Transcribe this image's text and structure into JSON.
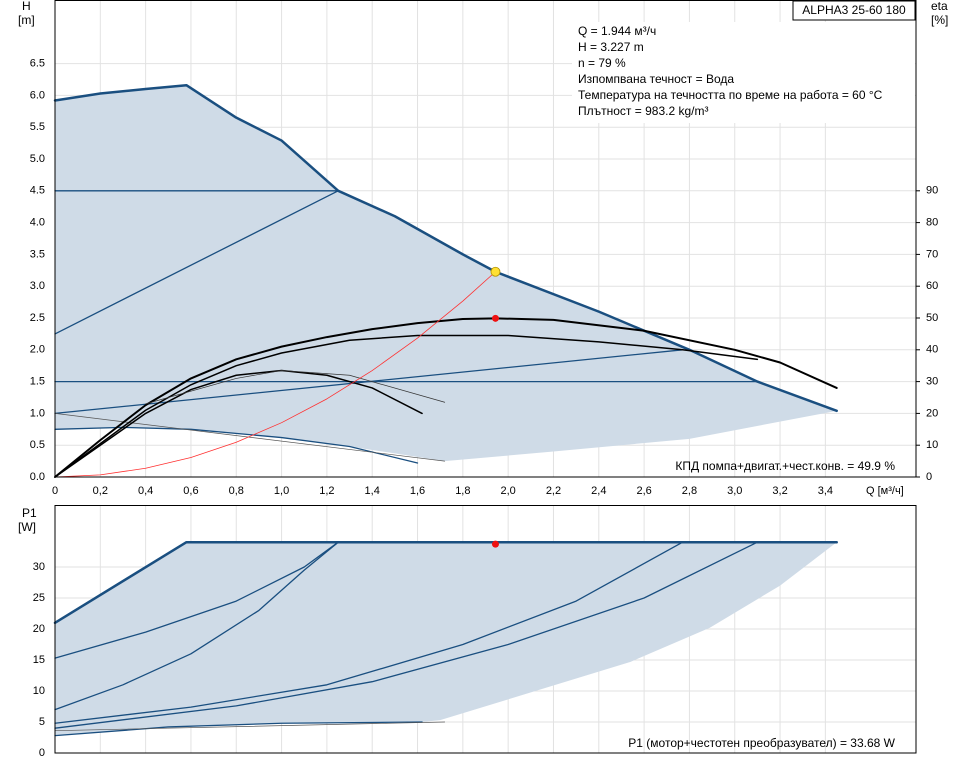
{
  "chart_data": [
    {
      "type": "line",
      "title": "ALPHA3 25-60 180",
      "info": [
        "Q = 1.944 м³/ч",
        "H = 3.227 m",
        "n = 79 %",
        "Изпомпвана течност = Вода",
        "Температура на течността по време на работа = 60 °C",
        "Плътност = 983.2 kg/m³"
      ],
      "annotation": "КПД помпа+двигат.+чест.конв. = 49.9 %",
      "ylabel": "H",
      "yunit": "[m]",
      "y2label": "eta",
      "y2unit": "[%]",
      "xlabel": "Q [м³/ч]",
      "xlim": [
        0,
        3.8
      ],
      "ylim": [
        0,
        7.5
      ],
      "y2lim": [
        0,
        150
      ],
      "grid": true,
      "xticks": [
        0,
        {
          "value": 0.2,
          "label": "0,2"
        },
        {
          "value": 0.4,
          "label": "0,4"
        },
        {
          "value": 0.6,
          "label": "0,6"
        },
        {
          "value": 0.8,
          "label": "0,8"
        },
        {
          "value": 1.0,
          "label": "1,0"
        },
        {
          "value": 1.2,
          "label": "1,2"
        },
        {
          "value": 1.4,
          "label": "1,4"
        },
        {
          "value": 1.6,
          "label": "1,6"
        },
        {
          "value": 1.8,
          "label": "1,8"
        },
        {
          "value": 2.0,
          "label": "2,0"
        },
        {
          "value": 2.2,
          "label": "2,2"
        },
        {
          "value": 2.4,
          "label": "2,4"
        },
        {
          "value": 2.6,
          "label": "2,6"
        },
        {
          "value": 2.8,
          "label": "2,8"
        },
        {
          "value": 3.0,
          "label": "3,0"
        },
        {
          "value": 3.2,
          "label": "3,2"
        },
        {
          "value": 3.4,
          "label": "3,4"
        }
      ],
      "yticks": [
        {
          "value": 0,
          "label": "0.0"
        },
        0.5,
        {
          "value": 1,
          "label": "1.0"
        },
        1.5,
        {
          "value": 2,
          "label": "2.0"
        },
        2.5,
        {
          "value": 3,
          "label": "3.0"
        },
        3.5,
        {
          "value": 4,
          "label": "4.0"
        },
        4.5,
        {
          "value": 5,
          "label": "5.0"
        },
        5.5,
        {
          "value": 6,
          "label": "6.0"
        },
        6.5
      ],
      "y2ticks": [
        0,
        10,
        20,
        30,
        40,
        50,
        60,
        70,
        80,
        90
      ],
      "area": {
        "color": "#cfdbe7",
        "x": [
          0,
          0.2,
          0.4,
          0.58,
          0.8,
          1.0,
          1.25,
          1.5,
          1.8,
          1.944,
          2.4,
          2.8,
          3.1,
          3.45,
          2.8,
          2.2,
          1.72,
          1.3,
          1.0,
          0.6,
          0.3,
          0
        ],
        "values": [
          5.92,
          6.03,
          6.1,
          6.16,
          5.65,
          5.29,
          4.5,
          4.1,
          3.5,
          3.227,
          2.6,
          2.0,
          1.5,
          1.04,
          0.6,
          0.4,
          0.25,
          0.48,
          0.62,
          0.75,
          0.78,
          0.75
        ]
      },
      "series": [
        {
          "color": "#1a4f80",
          "width": 2.5,
          "x": [
            0,
            0.2,
            0.4,
            0.58,
            0.8,
            1.0,
            1.25,
            1.5,
            1.8,
            1.944,
            2.4,
            2.8,
            3.1,
            3.45
          ],
          "values": [
            5.92,
            6.03,
            6.1,
            6.16,
            5.65,
            5.29,
            4.5,
            4.1,
            3.5,
            3.227,
            2.6,
            2.0,
            1.5,
            1.04
          ]
        },
        {
          "color": "#1a4f80",
          "width": 1.3,
          "x": [
            0,
            1.25
          ],
          "values": [
            4.5,
            4.5
          ]
        },
        {
          "color": "#1a4f80",
          "width": 1.3,
          "x": [
            0,
            1.25
          ],
          "values": [
            2.25,
            4.5
          ]
        },
        {
          "color": "#1a4f80",
          "width": 1.3,
          "x": [
            0,
            3.1
          ],
          "values": [
            1.5,
            1.5
          ]
        },
        {
          "color": "#1a4f80",
          "width": 1.3,
          "x": [
            0,
            2.77
          ],
          "values": [
            1.0,
            2.0
          ]
        },
        {
          "color": "#1a4f80",
          "width": 1.3,
          "x": [
            0,
            0.3,
            0.6,
            1.0,
            1.3,
            1.6
          ],
          "values": [
            0.75,
            0.78,
            0.75,
            0.62,
            0.48,
            0.22
          ]
        },
        {
          "color": "#555555",
          "width": 0.7,
          "x": [
            0,
            1.72
          ],
          "values": [
            1.0,
            0.25
          ]
        },
        {
          "color": "#000000",
          "width": 2,
          "axis": "y2",
          "x": [
            0,
            0.2,
            0.4,
            0.6,
            0.8,
            1.0,
            1.2,
            1.4,
            1.6,
            1.8,
            1.944,
            2.2,
            2.6,
            3.0,
            3.2,
            3.45
          ],
          "values": [
            0,
            11.6,
            22.6,
            31,
            37,
            41,
            44,
            46.5,
            48.4,
            49.7,
            49.9,
            49.4,
            46,
            40,
            36,
            28
          ]
        },
        {
          "color": "#000000",
          "width": 1.5,
          "axis": "y2",
          "x": [
            0,
            0.2,
            0.4,
            0.6,
            0.8,
            1.0,
            1.3,
            1.6,
            2.0,
            2.4,
            2.77,
            3.1
          ],
          "values": [
            0,
            10.5,
            21,
            29,
            35,
            39,
            43,
            44.5,
            44.5,
            42.5,
            40,
            37
          ]
        },
        {
          "color": "#000000",
          "width": 1.5,
          "axis": "y2",
          "x": [
            0,
            0.2,
            0.4,
            0.6,
            0.8,
            1.0,
            1.2,
            1.4,
            1.62
          ],
          "values": [
            0,
            10,
            20,
            27.5,
            32,
            33.5,
            32,
            28,
            20
          ]
        },
        {
          "color": "#333333",
          "width": 0.7,
          "axis": "y2",
          "x": [
            0.4,
            0.8,
            1.0,
            1.3,
            1.72
          ],
          "values": [
            23,
            31,
            33.5,
            32,
            23.5
          ]
        },
        {
          "color": "#ff3030",
          "width": 0.8,
          "x": [
            0,
            0.2,
            0.4,
            0.6,
            0.8,
            1.0,
            1.2,
            1.4,
            1.6,
            1.8,
            1.944
          ],
          "values": [
            0,
            0.034,
            0.137,
            0.307,
            0.546,
            0.854,
            1.229,
            1.673,
            2.185,
            2.766,
            3.227
          ]
        }
      ],
      "markers": [
        {
          "x": 1.944,
          "value": 3.227,
          "color": "#ffe033"
        },
        {
          "x": 1.944,
          "value": 49.9,
          "color": "#ee1111",
          "axis": "y2"
        }
      ]
    },
    {
      "type": "line",
      "ylabel": "P1",
      "yunit": "[W]",
      "annotation": "P1 (мотор+честотен преобразувател) = 33.68 W",
      "xlim": [
        0,
        3.8
      ],
      "ylim": [
        0,
        40
      ],
      "grid": true,
      "xticks": [
        0,
        0.2,
        0.4,
        0.6,
        0.8,
        1,
        1.2,
        1.4,
        1.6,
        1.8,
        2,
        2.2,
        2.4,
        2.6,
        2.8,
        3,
        3.2,
        3.4
      ],
      "yticks": [
        0,
        5,
        10,
        15,
        20,
        25,
        30
      ],
      "area": {
        "color": "#cfdbe7",
        "x": [
          0,
          0.58,
          3.45,
          3.2,
          2.89,
          2.54,
          1.7,
          1.62,
          1.0,
          0.5,
          0
        ],
        "values": [
          21,
          34,
          34,
          27,
          20.2,
          14.7,
          5.3,
          5.0,
          4.8,
          4.2,
          2.8
        ]
      },
      "series": [
        {
          "color": "#1a4f80",
          "width": 2.5,
          "x": [
            0,
            0.58,
            3.45
          ],
          "values": [
            21,
            34,
            34
          ]
        },
        {
          "color": "#1a4f80",
          "width": 1.3,
          "x": [
            0,
            0.4,
            0.8,
            1.1,
            1.25
          ],
          "values": [
            15.3,
            19.5,
            24.5,
            30,
            34
          ]
        },
        {
          "color": "#1a4f80",
          "width": 1.3,
          "x": [
            0,
            0.3,
            0.6,
            0.9,
            1.1,
            1.25
          ],
          "values": [
            7,
            11,
            16,
            23,
            29.5,
            34
          ]
        },
        {
          "color": "#1a4f80",
          "width": 1.3,
          "x": [
            0,
            0.6,
            1.2,
            1.8,
            2.3,
            2.77
          ],
          "values": [
            4.8,
            7.4,
            11,
            17.5,
            24.5,
            34
          ]
        },
        {
          "color": "#1a4f80",
          "width": 1.3,
          "x": [
            0,
            0.8,
            1.4,
            2.0,
            2.6,
            3.1
          ],
          "values": [
            4,
            7.6,
            11.5,
            17.5,
            25,
            34
          ]
        },
        {
          "color": "#1a4f80",
          "width": 1.3,
          "x": [
            0,
            0.5,
            1.0,
            1.62
          ],
          "values": [
            2.8,
            4.2,
            4.8,
            5.0
          ]
        },
        {
          "color": "#555555",
          "width": 0.7,
          "x": [
            0,
            1.72
          ],
          "values": [
            3.6,
            5.0
          ]
        }
      ],
      "markers": [
        {
          "x": 1.944,
          "value": 33.68,
          "color": "#ee1111"
        }
      ]
    }
  ]
}
